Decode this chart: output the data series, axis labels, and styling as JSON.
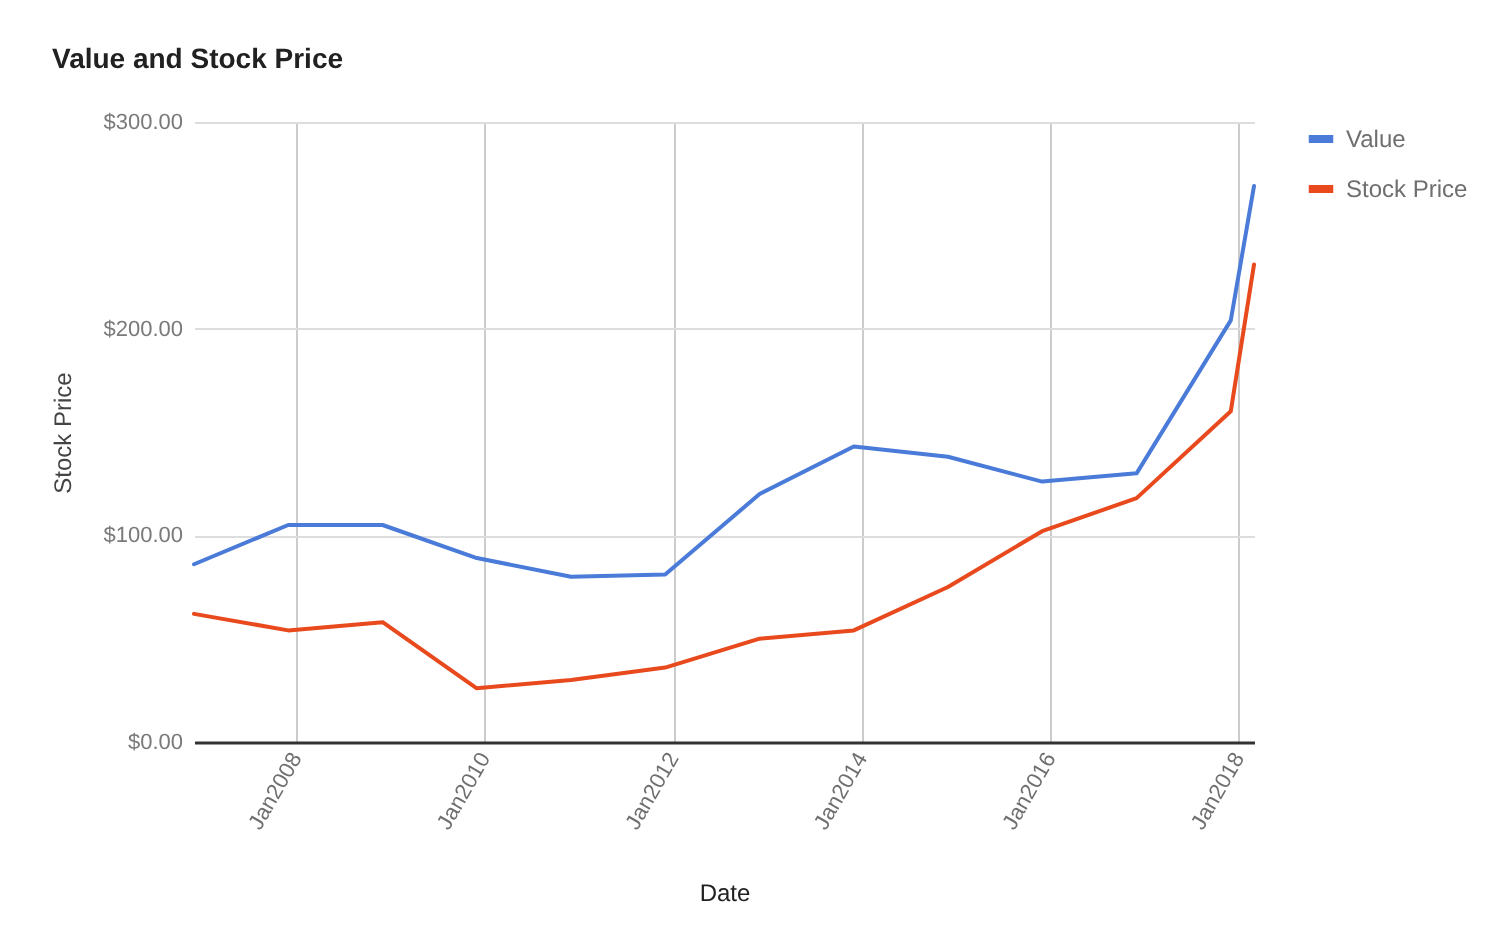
{
  "chart_data": {
    "type": "line",
    "title": "Value and Stock Price",
    "xlabel": "Date",
    "ylabel": "Stock Price",
    "x": [
      "2006-12",
      "2007-12",
      "2008-12",
      "2009-12",
      "2010-12",
      "2011-12",
      "2012-12",
      "2013-12",
      "2014-12",
      "2015-12",
      "2016-12",
      "2017-12",
      "2018-03"
    ],
    "series": [
      {
        "name": "Value",
        "color": "#4a7bd8",
        "values": [
          86,
          105,
          105,
          89,
          80,
          81,
          120,
          143,
          138,
          126,
          130,
          204,
          269
        ]
      },
      {
        "name": "Stock Price",
        "color": "#e8491d",
        "values": [
          62,
          54,
          58,
          26,
          30,
          36,
          50,
          54,
          75,
          102,
          118,
          160,
          231
        ]
      }
    ],
    "xlim": [
      "2006-12",
      "2018-03"
    ],
    "xticks": [
      {
        "value": "2008-01",
        "label": "Jan2008"
      },
      {
        "value": "2010-01",
        "label": "Jan2010"
      },
      {
        "value": "2012-01",
        "label": "Jan2012"
      },
      {
        "value": "2014-01",
        "label": "Jan2014"
      },
      {
        "value": "2016-01",
        "label": "Jan2016"
      },
      {
        "value": "2018-01",
        "label": "Jan2018"
      }
    ],
    "ylim": [
      0,
      300
    ],
    "yticks": [
      {
        "value": 0,
        "label": "$0.00"
      },
      {
        "value": 100,
        "label": "$100.00"
      },
      {
        "value": 200,
        "label": "$200.00"
      },
      {
        "value": 300,
        "label": "$300.00"
      }
    ],
    "grid": true,
    "legend": "top right"
  }
}
